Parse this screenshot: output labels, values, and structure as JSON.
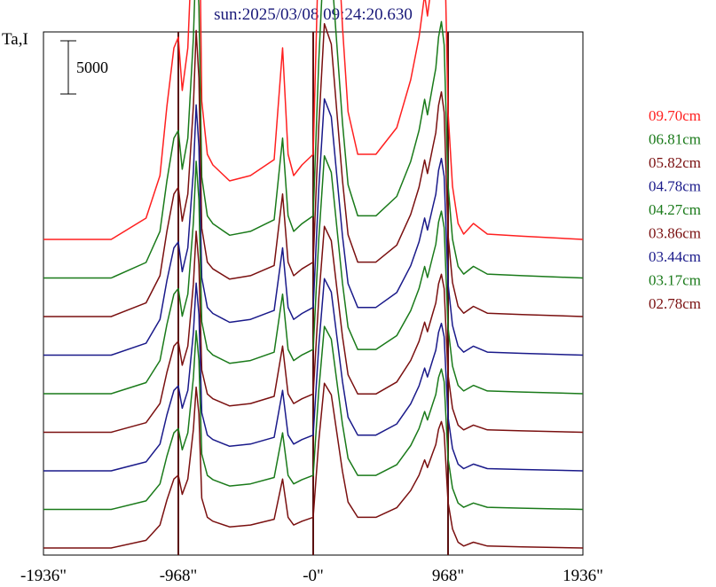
{
  "header": {
    "title": "sun:2025/03/08 09:24:20.630"
  },
  "y_axis_label": "Ta,I",
  "scale_bar_label": "5000",
  "chart_data": {
    "type": "line",
    "title": "sun:2025/03/08 09:24:20.630",
    "ylabel": "Ta,I",
    "xlabel": "",
    "x_unit": "arcsec",
    "x_ticks": [
      "-1936\"",
      "-968\"",
      "-0\"",
      "968\"",
      "1936\""
    ],
    "x_tick_values": [
      -1936,
      -968,
      0,
      968,
      1936
    ],
    "xlim": [
      -1936,
      1936
    ],
    "vertical_lines_x": [
      -968,
      0,
      968
    ],
    "scale_bar_value": 5000,
    "series_profile_x": [
      -1936,
      -1450,
      -1200,
      -1100,
      -1050,
      -1000,
      -968,
      -940,
      -900,
      -860,
      -840,
      -820,
      -800,
      -760,
      -720,
      -600,
      -450,
      -280,
      -220,
      -180,
      -140,
      -80,
      0,
      40,
      80,
      130,
      170,
      210,
      250,
      320,
      450,
      600,
      700,
      760,
      800,
      820,
      860,
      880,
      900,
      920,
      940,
      968,
      1000,
      1040,
      1080,
      1150,
      1250,
      1500,
      1936
    ],
    "series_profile_y": [
      0,
      0,
      2000,
      6000,
      12500,
      18000,
      19000,
      14000,
      18000,
      31000,
      42000,
      35000,
      13000,
      8000,
      7000,
      5500,
      6000,
      7500,
      18000,
      8000,
      6000,
      7000,
      8000,
      28000,
      43000,
      40000,
      30000,
      20000,
      12000,
      8000,
      8000,
      10500,
      15000,
      19000,
      23000,
      21000,
      25000,
      27000,
      31000,
      33000,
      30000,
      12000,
      5000,
      1500,
      500,
      1500,
      500,
      300,
      0
    ],
    "series": [
      {
        "name": "09.70cm",
        "color": "#ff2020",
        "scale": 1.0
      },
      {
        "name": "06.81cm",
        "color": "#1a7a1a",
        "scale": 0.73
      },
      {
        "name": "05.82cm",
        "color": "#7a1010",
        "scale": 0.64
      },
      {
        "name": "04.78cm",
        "color": "#1a1a8a",
        "scale": 0.56
      },
      {
        "name": "04.27cm",
        "color": "#1a7a1a",
        "scale": 0.52
      },
      {
        "name": "03.86cm",
        "color": "#7a1010",
        "scale": 0.45
      },
      {
        "name": "03.44cm",
        "color": "#1a1a8a",
        "scale": 0.42
      },
      {
        "name": "03.17cm",
        "color": "#1a7a1a",
        "scale": 0.4
      },
      {
        "name": "02.78cm",
        "color": "#7a1010",
        "scale": 0.36
      }
    ]
  }
}
